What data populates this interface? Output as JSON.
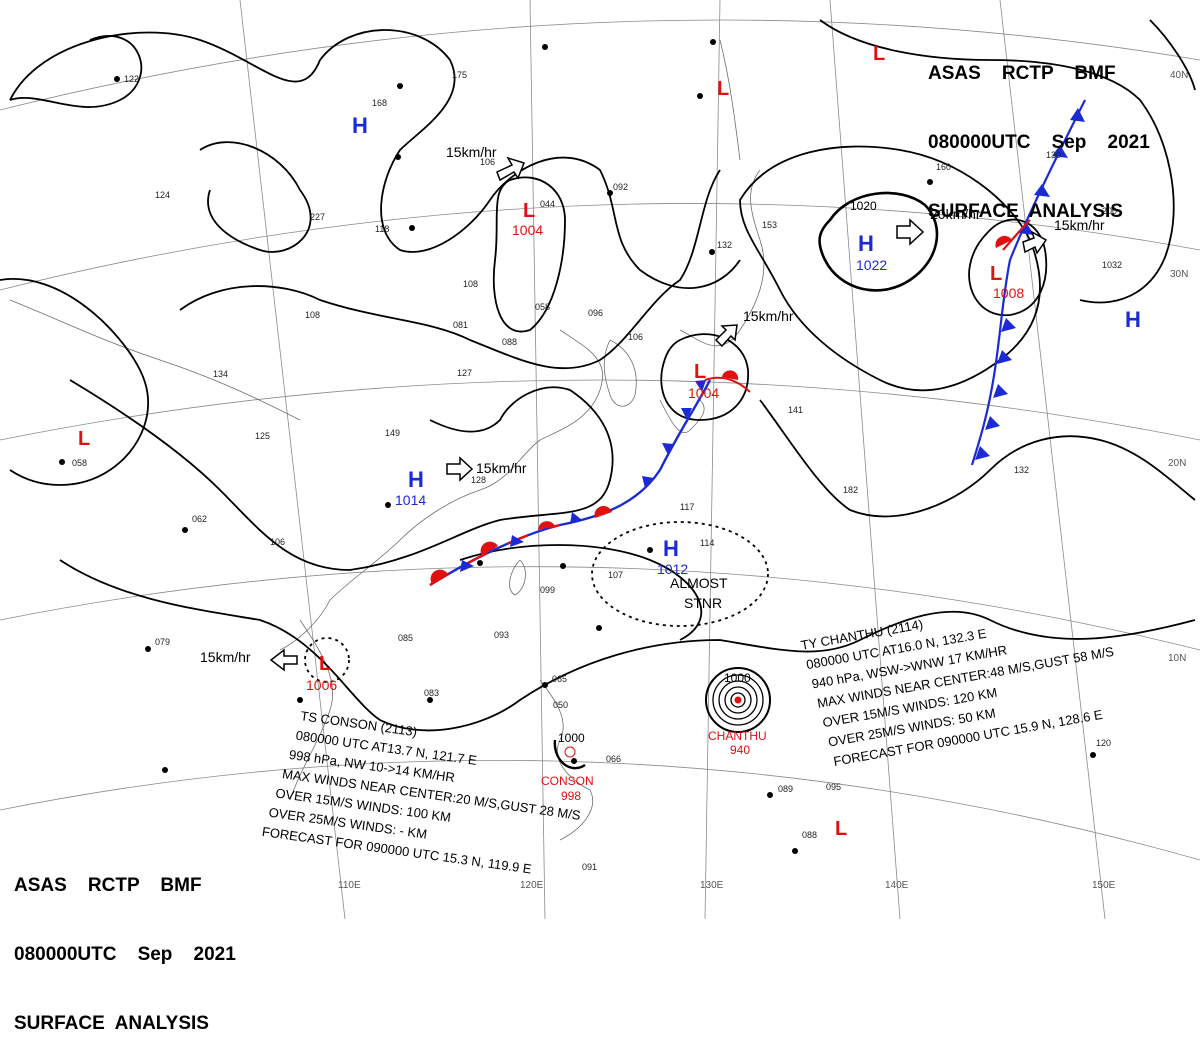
{
  "header_top": {
    "line1": "ASAS    RCTP    BMF",
    "line2": "080000UTC    Sep    2021",
    "line3": "SURFACE  ANALYSIS"
  },
  "header_bottom": {
    "line1": "ASAS    RCTP    BMF",
    "line2": "080000UTC    Sep    2021",
    "line3": "SURFACE  ANALYSIS"
  },
  "colors": {
    "high": "#1a2bd6",
    "low": "#e01010",
    "isobar": "#000000",
    "grid": "#8a8a8a",
    "coast": "#6d6d6d"
  },
  "lat_labels": [
    "40N",
    "30N",
    "20N",
    "10N"
  ],
  "lon_labels": [
    "110E",
    "120E",
    "130E",
    "140E",
    "150E"
  ],
  "pressure_centers": [
    {
      "type": "H",
      "value": "1014"
    },
    {
      "type": "H",
      "value": "1022"
    },
    {
      "type": "H",
      "value": "1012"
    },
    {
      "type": "H",
      "value": ""
    },
    {
      "type": "H",
      "value": ""
    },
    {
      "type": "L",
      "value": "1004"
    },
    {
      "type": "L",
      "value": "1004"
    },
    {
      "type": "L",
      "value": "1008"
    },
    {
      "type": "L",
      "value": "1006"
    },
    {
      "type": "L",
      "value": ""
    },
    {
      "type": "L",
      "value": ""
    },
    {
      "type": "L",
      "value": ""
    },
    {
      "type": "L",
      "value": ""
    }
  ],
  "isobar_labels": [
    "1020",
    "1000",
    "1000"
  ],
  "motion_labels": [
    "15km/hr",
    "15km/hr",
    "20km/hr",
    "15km/hr",
    "15km/hr",
    "15km/hr"
  ],
  "almost_stnr": {
    "line1": "ALMOST",
    "line2": "STNR"
  },
  "typhoon_chanthu": {
    "marker_name": "CHANTHU",
    "marker_pressure": "940",
    "lines": [
      "TY  CHANTHU  (2114)",
      "080000 UTC  AT16.0 N, 132.3 E",
      "940 hPa, WSW->WNW  17 KM/HR",
      "MAX WINDS NEAR CENTER:48 M/S,GUST 58 M/S",
      "OVER 15M/S WINDS: 120 KM",
      "OVER 25M/S WINDS: 50 KM",
      "FORECAST FOR 090000 UTC 15.9 N, 128.6 E"
    ]
  },
  "storm_conson": {
    "marker_name": "CONSON",
    "marker_pressure": "998",
    "lines": [
      "TS  CONSON  (2113)",
      "080000  UTC  AT13.7 N, 121.7 E",
      "998 hPa, NW  10->14 KM/HR",
      "MAX WINDS NEAR CENTER:20 M/S,GUST 28 M/S",
      "OVER 15M/S WINDS: 100 KM",
      "OVER 25M/S WINDS: - KM",
      "FORECAST FOR 090000 UTC 15.3 N, 119.9 E"
    ]
  },
  "station_values": [
    "1032",
    "175",
    "106",
    "044",
    "092",
    "132",
    "153",
    "130",
    "200",
    "227",
    "122",
    "124",
    "168",
    "108",
    "081",
    "088",
    "058",
    "096",
    "106",
    "127",
    "149",
    "125",
    "134",
    "058",
    "128",
    "117",
    "106",
    "107",
    "114",
    "099",
    "093",
    "085",
    "083",
    "079",
    "065",
    "050",
    "066",
    "089",
    "095",
    "088",
    "091",
    "120",
    "141",
    "160",
    "062",
    "132",
    "182",
    "108",
    "118"
  ]
}
